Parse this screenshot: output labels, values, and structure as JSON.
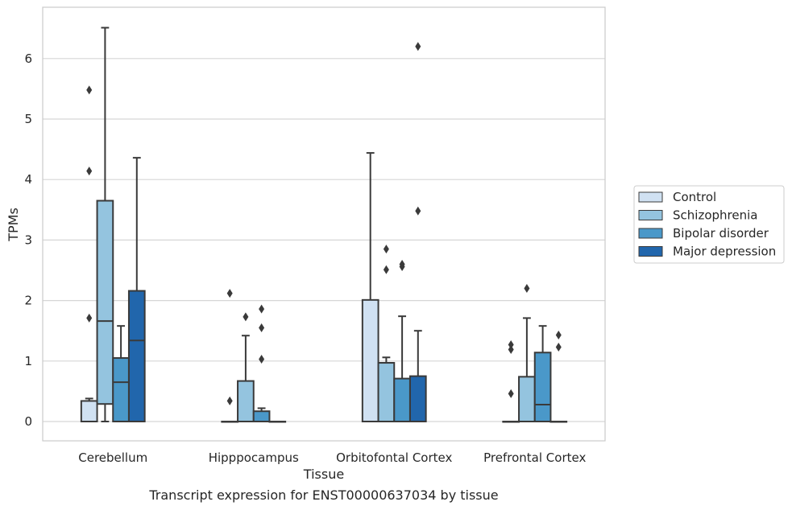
{
  "chart_data": {
    "type": "box",
    "xlabel": "Tissue",
    "ylabel": "TPMs",
    "caption": "Transcript expression for ENST00000637034 by tissue",
    "ylim": [
      -0.32,
      6.85
    ],
    "yticks": [
      0,
      1,
      2,
      3,
      4,
      5,
      6
    ],
    "grid": "horizontal",
    "legend_position": "right",
    "categories": [
      "Cerebellum",
      "Hipppocampus",
      "Orbitofontal Cortex",
      "Prefrontal Cortex"
    ],
    "series": [
      {
        "name": "Control",
        "color": "#d0e1f2",
        "boxes": [
          {
            "whislo": 0,
            "q1": 0,
            "med": 0,
            "q3": 0.34,
            "whishi": 0.38,
            "fliers": [
              1.71,
              4.14,
              5.48
            ]
          },
          {
            "whislo": 0,
            "q1": 0,
            "med": 0,
            "q3": 0,
            "whishi": 0,
            "fliers": [
              0.34,
              2.12
            ]
          },
          {
            "whislo": 0,
            "q1": 0,
            "med": 0,
            "q3": 2.01,
            "whishi": 4.44,
            "fliers": []
          },
          {
            "whislo": 0,
            "q1": 0,
            "med": 0,
            "q3": 0,
            "whishi": 0,
            "fliers": [
              0.46,
              1.19,
              1.27
            ]
          }
        ]
      },
      {
        "name": "Schizophrenia",
        "color": "#94c4df",
        "boxes": [
          {
            "whislo": 0,
            "q1": 0.29,
            "med": 1.66,
            "q3": 3.65,
            "whishi": 6.51,
            "fliers": []
          },
          {
            "whislo": 0,
            "q1": 0,
            "med": 0,
            "q3": 0.67,
            "whishi": 1.42,
            "fliers": [
              1.73
            ]
          },
          {
            "whislo": 0,
            "q1": 0,
            "med": 0.97,
            "q3": 0.97,
            "whishi": 1.06,
            "fliers": [
              2.51,
              2.85
            ]
          },
          {
            "whislo": 0,
            "q1": 0,
            "med": 0,
            "q3": 0.74,
            "whishi": 1.71,
            "fliers": [
              2.2
            ]
          }
        ]
      },
      {
        "name": "Bipolar disorder",
        "color": "#4a98c9",
        "boxes": [
          {
            "whislo": 0,
            "q1": 0,
            "med": 0.65,
            "q3": 1.05,
            "whishi": 1.58,
            "fliers": []
          },
          {
            "whislo": 0,
            "q1": 0,
            "med": 0,
            "q3": 0.17,
            "whishi": 0.22,
            "fliers": [
              1.03,
              1.55,
              1.86
            ]
          },
          {
            "whislo": 0,
            "q1": 0,
            "med": 0,
            "q3": 0.71,
            "whishi": 1.74,
            "fliers": [
              2.56,
              2.6
            ]
          },
          {
            "whislo": 0,
            "q1": 0,
            "med": 0.28,
            "q3": 1.14,
            "whishi": 1.58,
            "fliers": []
          }
        ]
      },
      {
        "name": "Major depression",
        "color": "#2166ac",
        "boxes": [
          {
            "whislo": 0,
            "q1": 0,
            "med": 1.34,
            "q3": 2.16,
            "whishi": 4.36,
            "fliers": []
          },
          {
            "whislo": 0,
            "q1": 0,
            "med": 0,
            "q3": 0,
            "whishi": 0,
            "fliers": []
          },
          {
            "whislo": 0,
            "q1": 0,
            "med": 0,
            "q3": 0.75,
            "whishi": 1.5,
            "fliers": [
              3.48,
              6.2
            ]
          },
          {
            "whislo": 0,
            "q1": 0,
            "med": 0,
            "q3": 0,
            "whishi": 0,
            "fliers": [
              1.23,
              1.43
            ]
          }
        ]
      }
    ]
  }
}
